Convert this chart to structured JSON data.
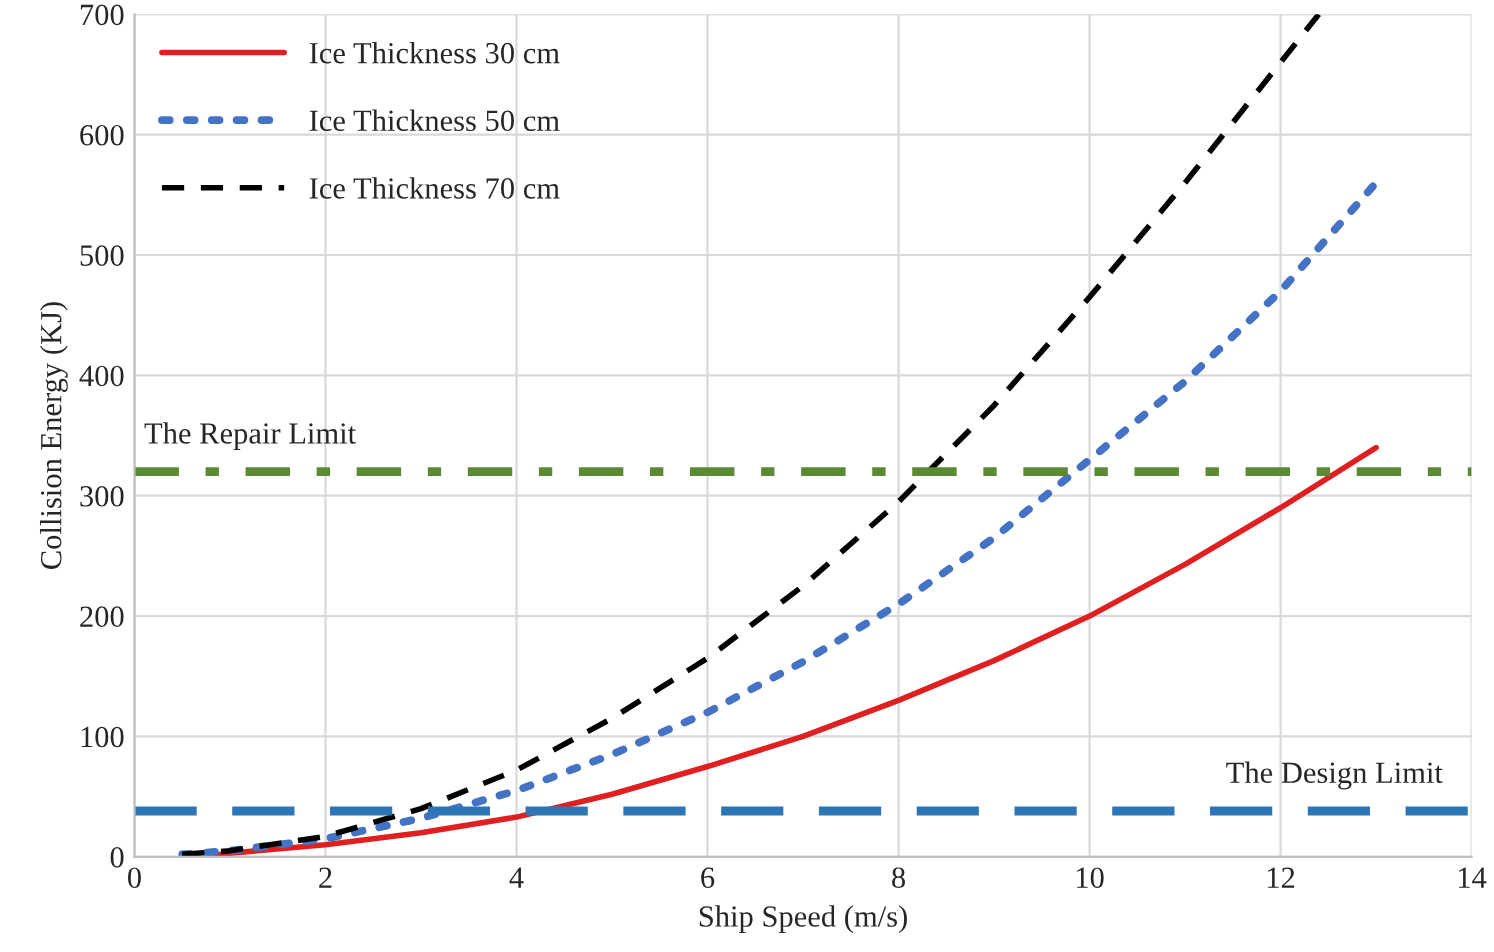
{
  "chart_data": {
    "type": "line",
    "xlabel": "Ship Speed (m/s)",
    "ylabel": "Collision Energy (KJ)",
    "xlim": [
      0,
      14
    ],
    "xticks": [
      0,
      2,
      4,
      6,
      8,
      10,
      12,
      14
    ],
    "ylim": [
      0,
      700
    ],
    "yticks": [
      0,
      100,
      200,
      300,
      400,
      500,
      600,
      700
    ],
    "grid": true,
    "legend": "top left",
    "marker": "none",
    "series": [
      {
        "name": "Ice Thickness 30 cm",
        "color": "#e02020",
        "line_style": "solid",
        "x": [
          0.8,
          1,
          2,
          3,
          4,
          5,
          6,
          7,
          8,
          9,
          10,
          11,
          12,
          13
        ],
        "values": [
          1,
          3,
          10,
          20,
          33,
          52,
          75,
          100,
          130,
          163,
          200,
          243,
          290,
          340
        ]
      },
      {
        "name": "Ice Thickness 50 cm",
        "color": "#4472c4",
        "line_style": "dotted",
        "x": [
          0.5,
          1,
          2,
          3,
          4,
          5,
          6,
          7,
          8,
          9,
          10,
          11,
          12,
          13
        ],
        "values": [
          2,
          5,
          15,
          32,
          55,
          85,
          120,
          162,
          210,
          265,
          330,
          395,
          470,
          560
        ]
      },
      {
        "name": "Ice Thickness 70 cm",
        "color": "#000000",
        "line_style": "dashed",
        "x": [
          0.5,
          1,
          2,
          3,
          4,
          5,
          6,
          7,
          8,
          9,
          10,
          11,
          12,
          12.4
        ],
        "values": [
          2,
          5,
          17,
          40,
          72,
          115,
          165,
          225,
          295,
          375,
          465,
          560,
          660,
          700
        ]
      }
    ],
    "ref_lines": [
      {
        "axis": "y",
        "value": 320,
        "label": "The Repair Limit",
        "color": "#5b8a32",
        "line_style": "dashdot"
      },
      {
        "axis": "y",
        "value": 38,
        "label": "The Design Limit",
        "color": "#2e75b6",
        "line_style": "dashed"
      }
    ]
  }
}
